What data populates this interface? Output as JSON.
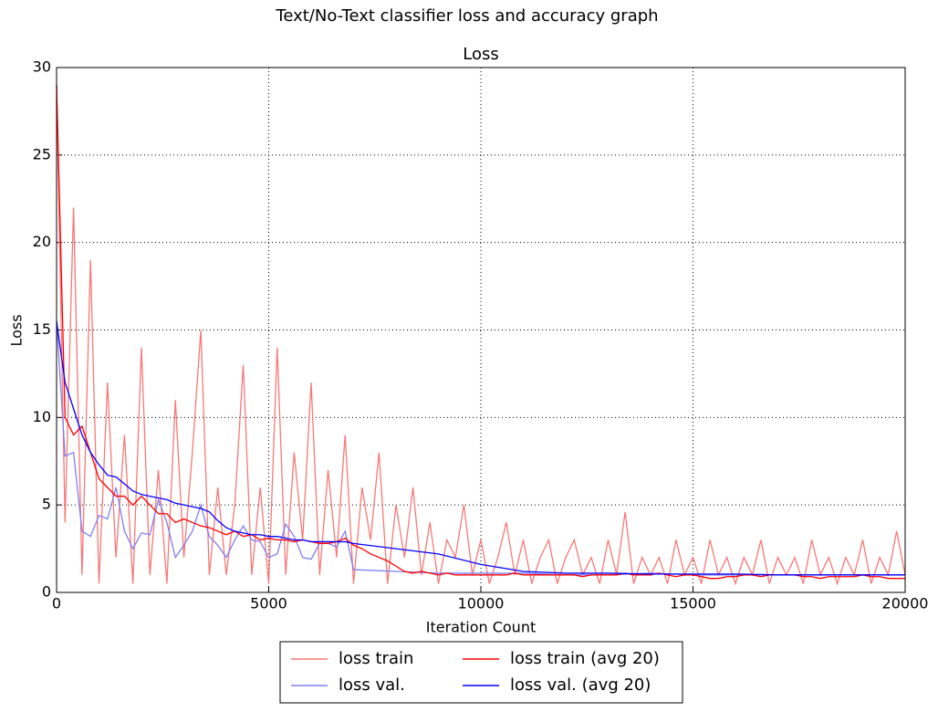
{
  "chart_data": {
    "type": "line",
    "suptitle": "Text/No-Text classifier loss and accuracy graph",
    "title": "Loss",
    "x_label": "Iteration Count",
    "y_label": "Loss",
    "xlim": [
      0,
      20000
    ],
    "xticks": [
      0,
      5000,
      10000,
      15000,
      20000
    ],
    "ylim": [
      0,
      30
    ],
    "yticks": [
      0,
      5,
      10,
      15,
      20,
      25,
      30
    ],
    "grid": true,
    "legend": "bottom",
    "x": [
      0,
      200,
      400,
      600,
      800,
      1000,
      1200,
      1400,
      1600,
      1800,
      2000,
      2200,
      2400,
      2600,
      2800,
      3000,
      3200,
      3400,
      3600,
      3800,
      4000,
      4200,
      4400,
      4600,
      4800,
      5000,
      5200,
      5400,
      5600,
      5800,
      6000,
      6200,
      6400,
      6600,
      6800,
      7000,
      7200,
      7400,
      7600,
      7800,
      8000,
      8200,
      8400,
      8600,
      8800,
      9000,
      9200,
      9400,
      9600,
      9800,
      10000,
      10200,
      10400,
      10600,
      10800,
      11000,
      11200,
      11400,
      11600,
      11800,
      12000,
      12200,
      12400,
      12600,
      12800,
      13000,
      13200,
      13400,
      13600,
      13800,
      14000,
      14200,
      14400,
      14600,
      14800,
      15000,
      15200,
      15400,
      15600,
      15800,
      16000,
      16200,
      16400,
      16600,
      16800,
      17000,
      17200,
      17400,
      17600,
      17800,
      18000,
      18200,
      18400,
      18600,
      18800,
      19000,
      19200,
      19400,
      19600,
      19800,
      20000
    ],
    "series": [
      {
        "name": "loss train",
        "color": "#f87878",
        "values": [
          29,
          4,
          22,
          1,
          19,
          0.5,
          12,
          2,
          9,
          0.5,
          14,
          1,
          7,
          0.5,
          11,
          2,
          8,
          15,
          1,
          6,
          1,
          5,
          13,
          1,
          6,
          0.5,
          14,
          1,
          8,
          3,
          12,
          1,
          7,
          2,
          9,
          0.5,
          6,
          3,
          8,
          0.5,
          5,
          2,
          6,
          1,
          4,
          0.5,
          3,
          2,
          5,
          1,
          3,
          0.5,
          2,
          4,
          1,
          3,
          0.5,
          2,
          3,
          0.5,
          2,
          3,
          1,
          2,
          0.5,
          3,
          1,
          4.6,
          0.5,
          2,
          1,
          2,
          0.5,
          3,
          1,
          2,
          0.5,
          3,
          1,
          2,
          0.5,
          2,
          1,
          3,
          0.5,
          2,
          1,
          2,
          0.5,
          3,
          1,
          2,
          0.5,
          2,
          1,
          3,
          0.5,
          2,
          1,
          3.5,
          1
        ]
      },
      {
        "name": "loss val.",
        "color": "#7f7ff5",
        "x": [
          0,
          200,
          400,
          600,
          800,
          1000,
          1200,
          1400,
          1600,
          1800,
          2000,
          2200,
          2400,
          2600,
          2800,
          3000,
          3200,
          3400,
          3600,
          3800,
          4000,
          4200,
          4400,
          4600,
          4800,
          5000,
          5200,
          5400,
          5600,
          5800,
          6000,
          6200,
          6400,
          6600,
          6800,
          7000,
          8000,
          9000,
          10000,
          11000,
          12000,
          13000,
          14000,
          15000,
          16000,
          17000,
          18000,
          19000,
          20000
        ],
        "values": [
          15.5,
          7.8,
          8,
          3.5,
          3.2,
          4.4,
          4.2,
          6,
          3.5,
          2.5,
          3.4,
          3.3,
          5.3,
          4,
          2,
          2.7,
          3.5,
          5,
          3.2,
          2.7,
          2,
          3,
          3.8,
          3,
          2.9,
          2,
          2.2,
          3.9,
          3.2,
          2,
          1.9,
          2.8,
          2.8,
          2.6,
          3.5,
          1.3,
          1.2,
          1.1,
          1.1,
          1.1,
          1,
          1,
          1.1,
          1,
          1,
          1,
          1,
          1,
          1
        ]
      },
      {
        "name": "loss train (avg 20)",
        "color": "#ff0000",
        "values": [
          29,
          10,
          9,
          9.5,
          8,
          6.5,
          6,
          5.5,
          5.5,
          5,
          5.5,
          5,
          4.5,
          4.5,
          4,
          4.2,
          4,
          3.8,
          3.7,
          3.5,
          3.3,
          3.5,
          3.2,
          3.3,
          3,
          3.1,
          3,
          3,
          2.9,
          3,
          2.9,
          2.8,
          2.8,
          2.9,
          3.1,
          2.7,
          2.5,
          2.2,
          2,
          1.8,
          1.5,
          1.2,
          1.1,
          1.2,
          1.1,
          1,
          1.1,
          1,
          1,
          1,
          1,
          1,
          1,
          1,
          1.1,
          1,
          1,
          1,
          1,
          1,
          1,
          1,
          0.9,
          1,
          1,
          1,
          1,
          1.1,
          1,
          1,
          1,
          1.1,
          1,
          0.9,
          1,
          1,
          0.9,
          0.8,
          0.8,
          0.9,
          0.9,
          1,
          1,
          0.9,
          1,
          1,
          1,
          1,
          0.9,
          0.9,
          0.8,
          0.9,
          0.9,
          0.9,
          0.9,
          1,
          0.9,
          0.9,
          0.8,
          0.8,
          0.8
        ]
      },
      {
        "name": "loss val. (avg 20)",
        "color": "#0000ff",
        "x": [
          0,
          200,
          400,
          600,
          800,
          1000,
          1200,
          1400,
          1600,
          1800,
          2000,
          2200,
          2400,
          2600,
          2800,
          3000,
          3200,
          3400,
          3600,
          3800,
          4000,
          4200,
          4400,
          4600,
          4800,
          5000,
          5200,
          5400,
          5600,
          5800,
          6000,
          6200,
          6400,
          6600,
          6800,
          7000,
          8000,
          9000,
          10000,
          11000,
          12000,
          13000,
          14000,
          15000,
          16000,
          17000,
          18000,
          19000,
          20000
        ],
        "values": [
          15.5,
          12,
          10.5,
          9,
          8,
          7.3,
          6.7,
          6.6,
          6.2,
          5.8,
          5.6,
          5.5,
          5.4,
          5.3,
          5.1,
          5,
          4.9,
          4.8,
          4.6,
          4.1,
          3.7,
          3.5,
          3.4,
          3.3,
          3.3,
          3.2,
          3.2,
          3.1,
          3.0,
          3.0,
          2.9,
          2.9,
          2.9,
          2.9,
          2.9,
          2.8,
          2.5,
          2.2,
          1.6,
          1.2,
          1.1,
          1.1,
          1.05,
          1.05,
          1.05,
          1.0,
          1.0,
          1.0,
          1.0
        ]
      }
    ]
  }
}
